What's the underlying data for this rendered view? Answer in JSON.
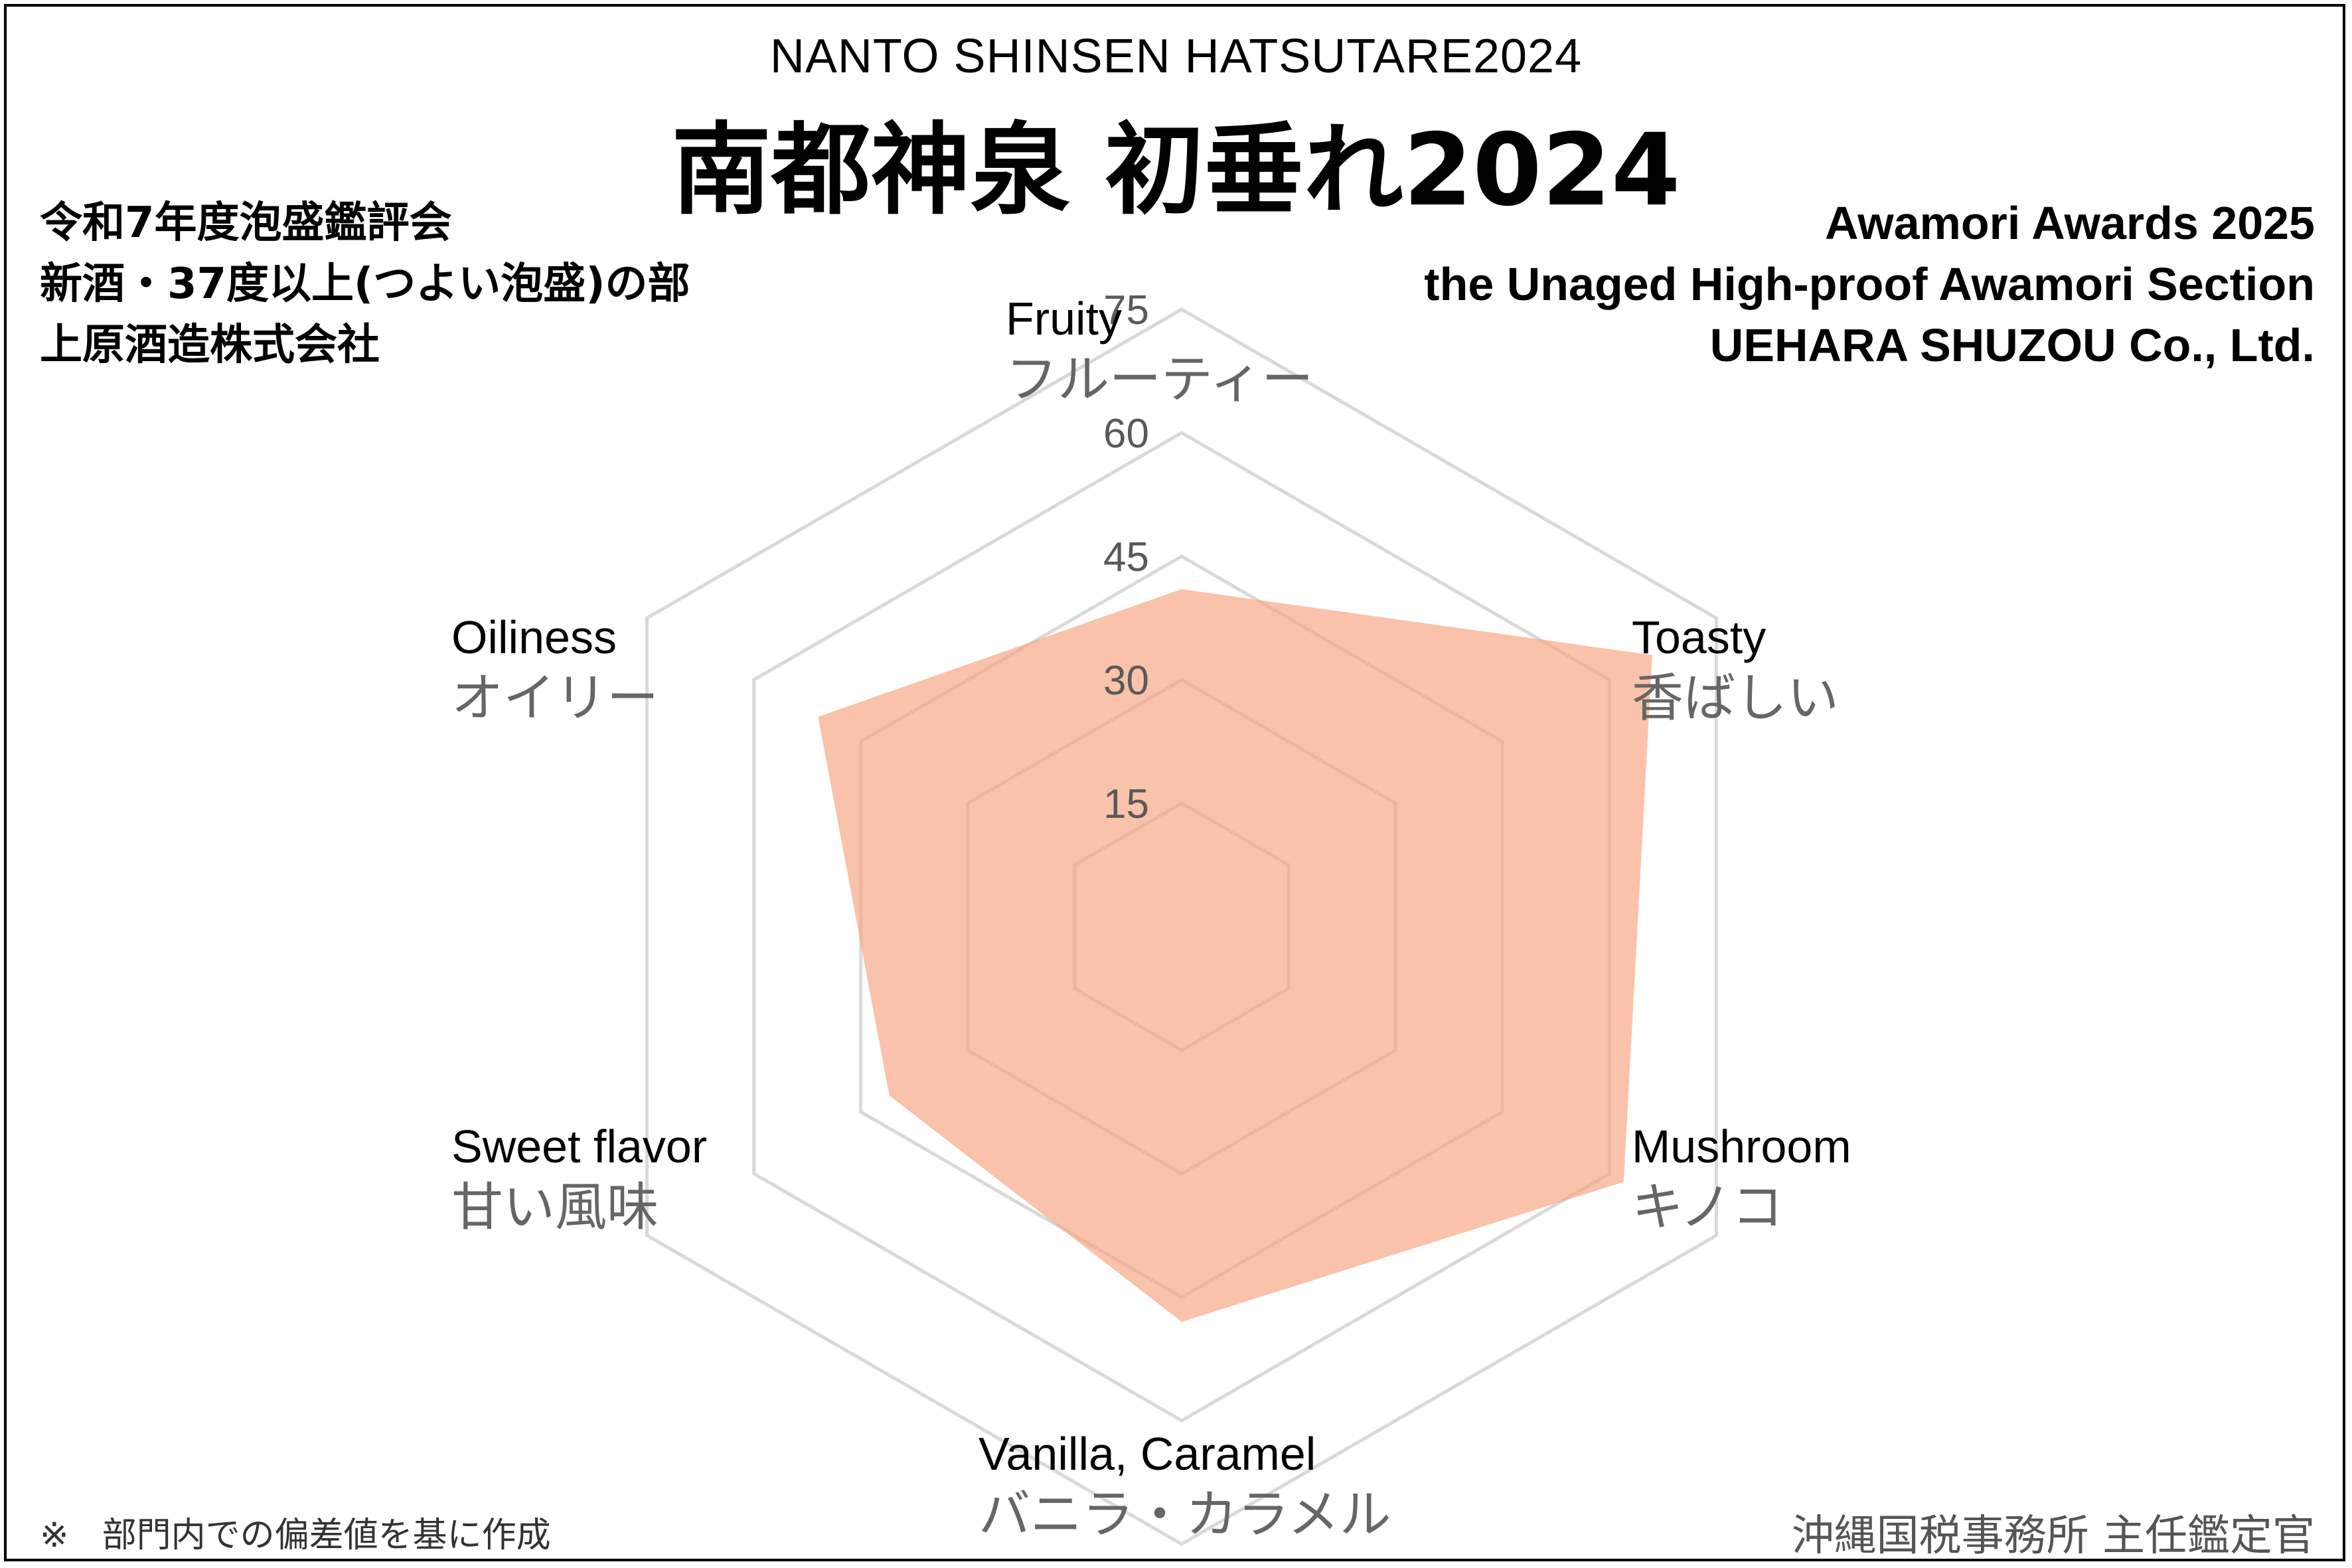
{
  "header": {
    "title_en": "NANTO SHINSEN HATSUTARE2024",
    "title_ja": "南都神泉 初垂れ2024"
  },
  "left_info": {
    "line1": "令和7年度泡盛鑑評会",
    "line2": "新酒・37度以上(つよい泡盛)の部",
    "line3": "上原酒造株式会社"
  },
  "right_info": {
    "line1": "Awamori Awards 2025",
    "line2": "the Unaged High-proof Awamori Section",
    "line3": "UEHARA SHUZOU Co., Ltd."
  },
  "footer": {
    "mark": "※",
    "note": "部門内での偏差値を基に作成",
    "issuer": "沖縄国税事務所 主任鑑定官"
  },
  "chart_data": {
    "type": "radar",
    "axes": [
      {
        "en": "Fruity",
        "ja": "フルーティー"
      },
      {
        "en": "Toasty",
        "ja": "香ばしい"
      },
      {
        "en": "Mushroom",
        "ja": "キノコ"
      },
      {
        "en": "Vanilla, Caramel",
        "ja": "バニラ・カラメル"
      },
      {
        "en": "Sweet flavor",
        "ja": "甘い風味"
      },
      {
        "en": "Oiliness",
        "ja": "オイリー"
      }
    ],
    "values": [
      41,
      66,
      62,
      48,
      41,
      51
    ],
    "rmin": 0,
    "rmax": 75,
    "ticks": [
      15,
      30,
      45,
      60,
      75
    ],
    "tick_labels": [
      "15",
      "30",
      "45",
      "60",
      "75"
    ],
    "grid_color": "#d9d9d9",
    "fill_color": "#f8a17c",
    "fill_opacity": 0.65
  }
}
